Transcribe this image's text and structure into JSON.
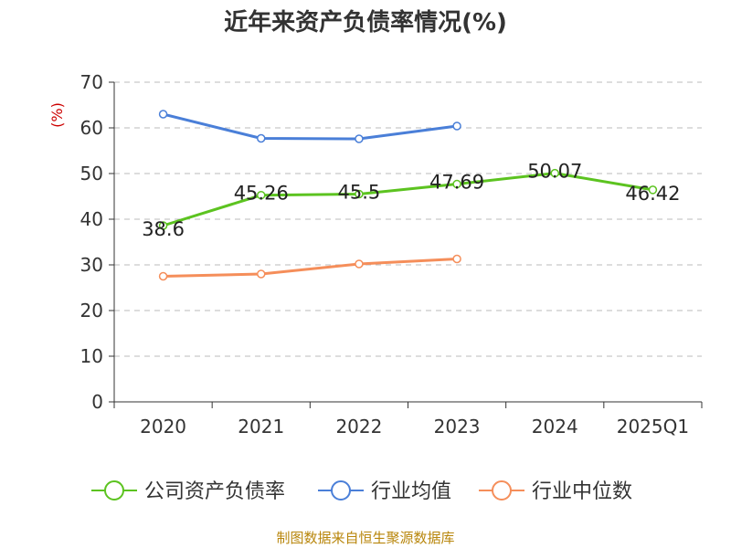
{
  "title": "近年来资产负债率情况(%)",
  "footer": "制图数据来自恒生聚源数据库",
  "chart_data": {
    "type": "line",
    "title": "近年来资产负债率情况(%)",
    "ylabel": "(%)",
    "xlabel": "",
    "categories": [
      "2020",
      "2021",
      "2022",
      "2023",
      "2024",
      "2025Q1"
    ],
    "ylim": [
      0,
      70
    ],
    "yticks": [
      0,
      10,
      20,
      30,
      40,
      50,
      60,
      70
    ],
    "grid": true,
    "legend": "bottom",
    "series": [
      {
        "name": "公司资产负债率",
        "color": "#5cc320",
        "values": [
          38.6,
          45.26,
          45.5,
          47.69,
          50.07,
          46.42
        ],
        "labels": [
          "38.6",
          "45.26",
          "45.5",
          "47.69",
          "50.07",
          "46.42"
        ]
      },
      {
        "name": "行业均值",
        "color": "#4a7fd8",
        "values": [
          63.0,
          57.7,
          57.6,
          60.4,
          null,
          null
        ]
      },
      {
        "name": "行业中位数",
        "color": "#f58e5a",
        "values": [
          27.5,
          28.0,
          30.2,
          31.3,
          null,
          null
        ]
      }
    ]
  }
}
